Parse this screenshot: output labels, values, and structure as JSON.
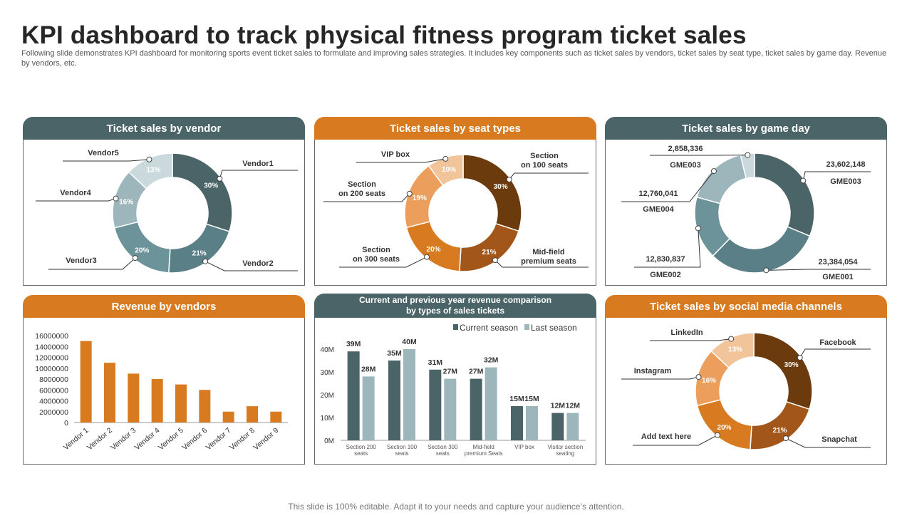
{
  "page": {
    "title": "KPI dashboard to track physical fitness program ticket sales",
    "subtitle": "Following slide demonstrates KPI dashboard for monitoring sports event ticket sales to formulate and improving sales strategies. It includes key components such as ticket sales by vendors, ticket sales by seat type,  ticket sales by game day. Revenue by vendors, etc.",
    "footer": "This slide is 100% editable. Adapt it to your needs and capture your audience’s attention."
  },
  "panels": {
    "vendor": "Ticket sales by vendor",
    "seat": "Ticket sales by seat types",
    "gameday": "Ticket sales by game day",
    "revenue": "Revenue by vendors",
    "comparison_line1": "Current and previous year revenue comparison",
    "comparison_line2": "by types  of sales tickets",
    "social": "Ticket sales by social media channels"
  },
  "colors": {
    "dark_header": "#4a6468",
    "orange_header": "#d87a1f",
    "teal": [
      "#4a6468",
      "#5a7f86",
      "#6d939a",
      "#9db6bc",
      "#c9d9dc"
    ],
    "orange": [
      "#6b3a0d",
      "#a3561a",
      "#d87a1f",
      "#ec9f5c",
      "#f2c49a"
    ],
    "bar_orange": "#d87a1f",
    "current": "#4a6468",
    "last": "#9db6bc"
  },
  "chart_data": [
    {
      "id": "vendor",
      "type": "pie",
      "title": "Ticket sales by vendor",
      "labels": [
        "Vendor1",
        "Vendor2",
        "Vendor3",
        "Vendor4",
        "Vendor5"
      ],
      "values": [
        30,
        21,
        20,
        16,
        13
      ],
      "value_labels": [
        "30%",
        "21%",
        "20%",
        "16%",
        "13%"
      ]
    },
    {
      "id": "seat",
      "type": "pie",
      "title": "Ticket sales by seat types",
      "labels": [
        "Section on 100 seats",
        "Mid-field premium seats",
        "Section on 300 seats",
        "Section on 200 seats",
        "VIP box"
      ],
      "values": [
        30,
        21,
        20,
        19,
        10
      ],
      "value_labels": [
        "30%",
        "21%",
        "20%",
        "19%",
        "10%"
      ]
    },
    {
      "id": "gameday",
      "type": "pie",
      "title": "Ticket sales by game day",
      "labels": [
        "GME003",
        "GME001",
        "GME002",
        "GME004",
        "GME003"
      ],
      "values": [
        23602148,
        23384054,
        12830837,
        12760041,
        2858336
      ],
      "value_labels": [
        "23,602,148",
        "23,384,054",
        "12,830,837",
        "12,760,041",
        "2,858,336"
      ]
    },
    {
      "id": "revenue",
      "type": "bar",
      "title": "Revenue by vendors",
      "categories": [
        "Vendor 1",
        "Vendor 2",
        "Vendor 3",
        "Vendor 4",
        "Vendor 5",
        "Vendor 6",
        "Vendor 7",
        "Vendor 8",
        "Vendor 9"
      ],
      "values": [
        15000000,
        11000000,
        9000000,
        8000000,
        7000000,
        6000000,
        2000000,
        3000000,
        2000000
      ],
      "ylim": [
        0,
        16000000
      ],
      "yticks": [
        "0",
        "2000000",
        "4000000",
        "6000000",
        "8000000",
        "10000000",
        "12000000",
        "14000000",
        "16000000"
      ]
    },
    {
      "id": "comparison",
      "type": "bar",
      "title": "Current and previous year revenue comparison by types  of sales tickets",
      "categories": [
        [
          "Section 200",
          "seats"
        ],
        [
          "Section 100",
          "seats"
        ],
        [
          "Section 300",
          "seats"
        ],
        [
          "Mid-field",
          "premium Seats"
        ],
        [
          "VIP box"
        ],
        [
          "Visitor section",
          "seating"
        ]
      ],
      "series": [
        {
          "name": "Current season",
          "values": [
            39,
            35,
            31,
            27,
            15,
            12
          ],
          "labels": [
            "39M",
            "35M",
            "31M",
            "27M",
            "15M",
            "12M"
          ]
        },
        {
          "name": "Last season",
          "values": [
            28,
            40,
            27,
            32,
            15,
            12
          ],
          "labels": [
            "28M",
            "40M",
            "27M",
            "32M",
            "15M",
            "12M"
          ]
        }
      ],
      "ylim": [
        0,
        40
      ],
      "yticks": [
        "0M",
        "10M",
        "20M",
        "30M",
        "40M"
      ]
    },
    {
      "id": "social",
      "type": "pie",
      "title": "Ticket sales by social media channels",
      "labels": [
        "Facebook",
        "Snapchat",
        "Add text here",
        "Instagram",
        "LinkedIn"
      ],
      "values": [
        30,
        21,
        20,
        16,
        13
      ],
      "value_labels": [
        "30%",
        "21%",
        "20%",
        "16%",
        "13%"
      ]
    }
  ]
}
